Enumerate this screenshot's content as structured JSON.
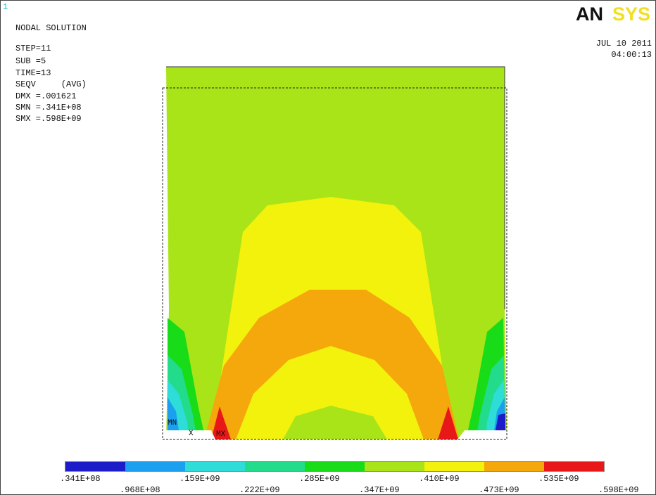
{
  "window_number": "1",
  "logo": {
    "an": "AN",
    "sys": "SYS"
  },
  "info": [
    "NODAL SOLUTION",
    "STEP=11",
    "SUB =5",
    "TIME=13",
    "SEQV     (AVG)",
    "DMX =.001621",
    "SMN =.341E+08",
    "SMX =.598E+09"
  ],
  "date": "JUL 10 2011",
  "time": "04:00:13",
  "markers": {
    "mn": "MN",
    "x": "X",
    "mx": "MX"
  },
  "legend": {
    "colors": [
      "#1c1cc8",
      "#1aa0ee",
      "#2edcd8",
      "#22dc8c",
      "#18dc18",
      "#a8e418",
      "#f2f20c",
      "#f4a80c",
      "#e81818"
    ],
    "labels": [
      ".341E+08",
      ".968E+08",
      ".159E+09",
      ".222E+09",
      ".285E+09",
      ".347E+09",
      ".410E+09",
      ".473E+09",
      ".535E+09",
      ".598E+09"
    ]
  }
}
